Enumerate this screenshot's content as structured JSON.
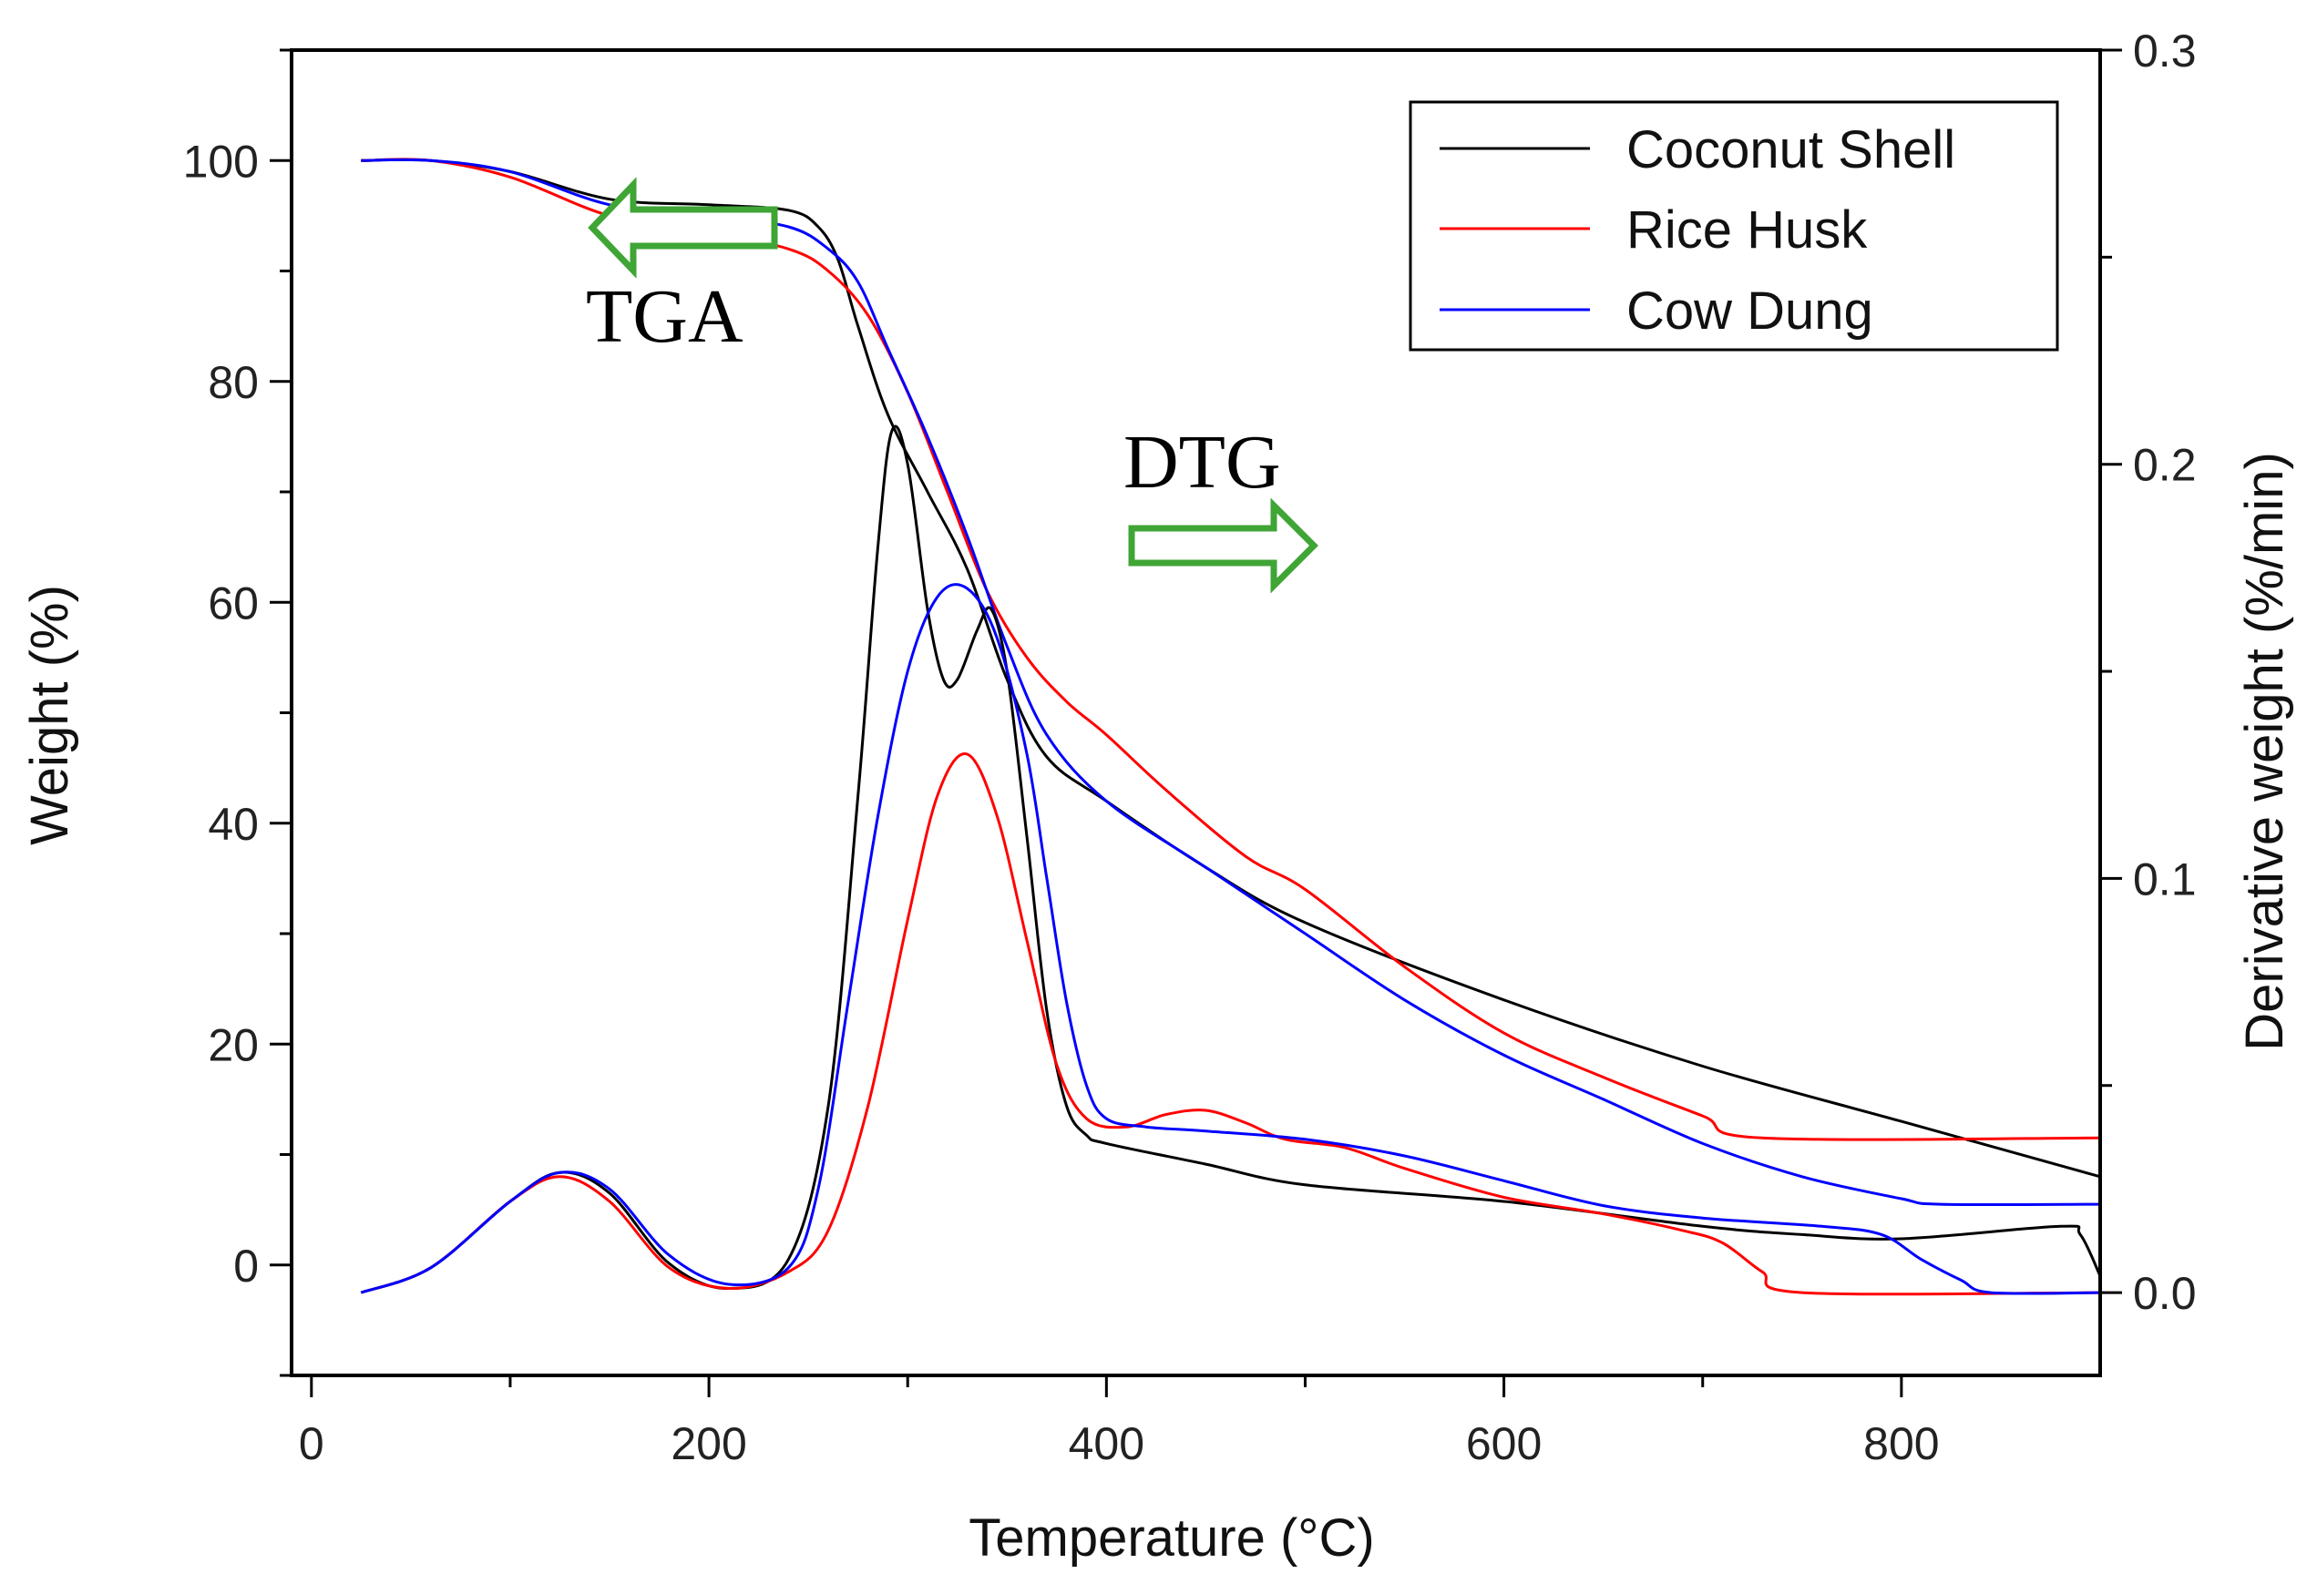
{
  "chart_data": {
    "type": "line",
    "title": "",
    "xlabel": "Temperature (°C)",
    "ylabel_left": "Weight (%)",
    "ylabel_right": "Derivative weight (%/min)",
    "xlim": [
      -10,
      900
    ],
    "ylim_left": [
      -10,
      110
    ],
    "ylim_right": [
      -0.02,
      0.3
    ],
    "grid": false,
    "legend_position": "top-right",
    "x_ticks": [
      0,
      200,
      400,
      600,
      800
    ],
    "y_left_ticks": [
      0,
      20,
      40,
      60,
      80,
      100
    ],
    "y_right_ticks": [
      0.0,
      0.1,
      0.2,
      0.3
    ],
    "x_tick_labels": [
      "0",
      "200",
      "400",
      "600",
      "800"
    ],
    "y_left_tick_labels": [
      "0",
      "20",
      "40",
      "60",
      "80",
      "100"
    ],
    "y_right_tick_labels": [
      "0.0",
      "0.1",
      "0.2",
      "0.3"
    ],
    "annotations": [
      {
        "text": "TGA",
        "arrow": "left",
        "axis": "left"
      },
      {
        "text": "DTG",
        "arrow": "right",
        "axis": "right"
      }
    ],
    "series": [
      {
        "name": "Coconut Shell",
        "curve": "TGA",
        "axis": "left",
        "color": "#000000",
        "x": [
          25,
          60,
          100,
          150,
          200,
          240,
          255,
          265,
          275,
          290,
          310,
          330,
          350,
          370,
          400,
          450,
          500,
          600,
          700,
          800,
          900
        ],
        "y": [
          100,
          100,
          99,
          96.5,
          96,
          95.5,
          94,
          91,
          85,
          77,
          70,
          63,
          53,
          46,
          42,
          36,
          31,
          24,
          18,
          13,
          8
        ]
      },
      {
        "name": "Rice Husk",
        "curve": "TGA",
        "axis": "left",
        "color": "#ff0000",
        "x": [
          25,
          60,
          100,
          150,
          200,
          240,
          260,
          280,
          300,
          320,
          340,
          360,
          380,
          400,
          430,
          470,
          500,
          550,
          600,
          650,
          700,
          730,
          900
        ],
        "y": [
          100,
          100,
          98.5,
          95,
          93.5,
          92,
          90,
          86,
          79,
          70,
          61,
          55,
          51,
          48,
          43,
          37,
          34,
          27,
          21,
          17,
          13.5,
          11.5,
          11.5
        ]
      },
      {
        "name": "Cow Dung",
        "curve": "TGA",
        "axis": "left",
        "color": "#0000ff",
        "x": [
          25,
          60,
          100,
          150,
          200,
          240,
          260,
          275,
          290,
          310,
          330,
          350,
          370,
          400,
          450,
          500,
          550,
          600,
          650,
          700,
          750,
          800,
          820,
          900
        ],
        "y": [
          100,
          100,
          99,
          96,
          95,
          94,
          92,
          89,
          83,
          75,
          66,
          56,
          48,
          42,
          36,
          30,
          24,
          19,
          15,
          11,
          8,
          6,
          5.5,
          5.5
        ]
      },
      {
        "name": "Coconut Shell",
        "curve": "DTG",
        "axis": "right",
        "color": "#000000",
        "x": [
          25,
          60,
          100,
          125,
          150,
          180,
          210,
          240,
          260,
          275,
          285,
          292,
          300,
          310,
          318,
          325,
          335,
          342,
          350,
          360,
          370,
          380,
          390,
          400,
          450,
          500,
          600,
          700,
          750,
          800,
          880,
          890,
          900
        ],
        "y": [
          0.0,
          0.006,
          0.022,
          0.029,
          0.024,
          0.007,
          0.001,
          0.008,
          0.045,
          0.12,
          0.18,
          0.208,
          0.2,
          0.165,
          0.148,
          0.148,
          0.16,
          0.165,
          0.15,
          0.11,
          0.068,
          0.045,
          0.038,
          0.036,
          0.031,
          0.026,
          0.022,
          0.016,
          0.014,
          0.013,
          0.016,
          0.014,
          0.004
        ]
      },
      {
        "name": "Rice Husk",
        "curve": "DTG",
        "axis": "right",
        "color": "#ff0000",
        "x": [
          25,
          60,
          100,
          125,
          150,
          180,
          210,
          240,
          260,
          280,
          300,
          315,
          330,
          345,
          360,
          375,
          390,
          410,
          430,
          450,
          470,
          490,
          520,
          550,
          600,
          650,
          690,
          710,
          730,
          750,
          900
        ],
        "y": [
          0.0,
          0.006,
          0.022,
          0.028,
          0.022,
          0.006,
          0.001,
          0.005,
          0.015,
          0.045,
          0.09,
          0.12,
          0.13,
          0.115,
          0.085,
          0.055,
          0.042,
          0.04,
          0.043,
          0.044,
          0.041,
          0.037,
          0.035,
          0.03,
          0.023,
          0.019,
          0.015,
          0.012,
          0.005,
          0.0,
          0.0
        ]
      },
      {
        "name": "Cow Dung",
        "curve": "DTG",
        "axis": "right",
        "color": "#0000ff",
        "x": [
          25,
          60,
          100,
          125,
          150,
          180,
          210,
          240,
          255,
          270,
          285,
          300,
          315,
          330,
          345,
          360,
          370,
          380,
          390,
          400,
          420,
          450,
          500,
          550,
          600,
          650,
          700,
          760,
          790,
          810,
          830,
          845,
          900
        ],
        "y": [
          0.0,
          0.006,
          0.022,
          0.029,
          0.025,
          0.009,
          0.002,
          0.006,
          0.025,
          0.07,
          0.115,
          0.15,
          0.168,
          0.17,
          0.158,
          0.13,
          0.1,
          0.07,
          0.05,
          0.042,
          0.04,
          0.039,
          0.037,
          0.033,
          0.027,
          0.021,
          0.018,
          0.016,
          0.014,
          0.008,
          0.003,
          0.0,
          0.0
        ]
      }
    ]
  }
}
